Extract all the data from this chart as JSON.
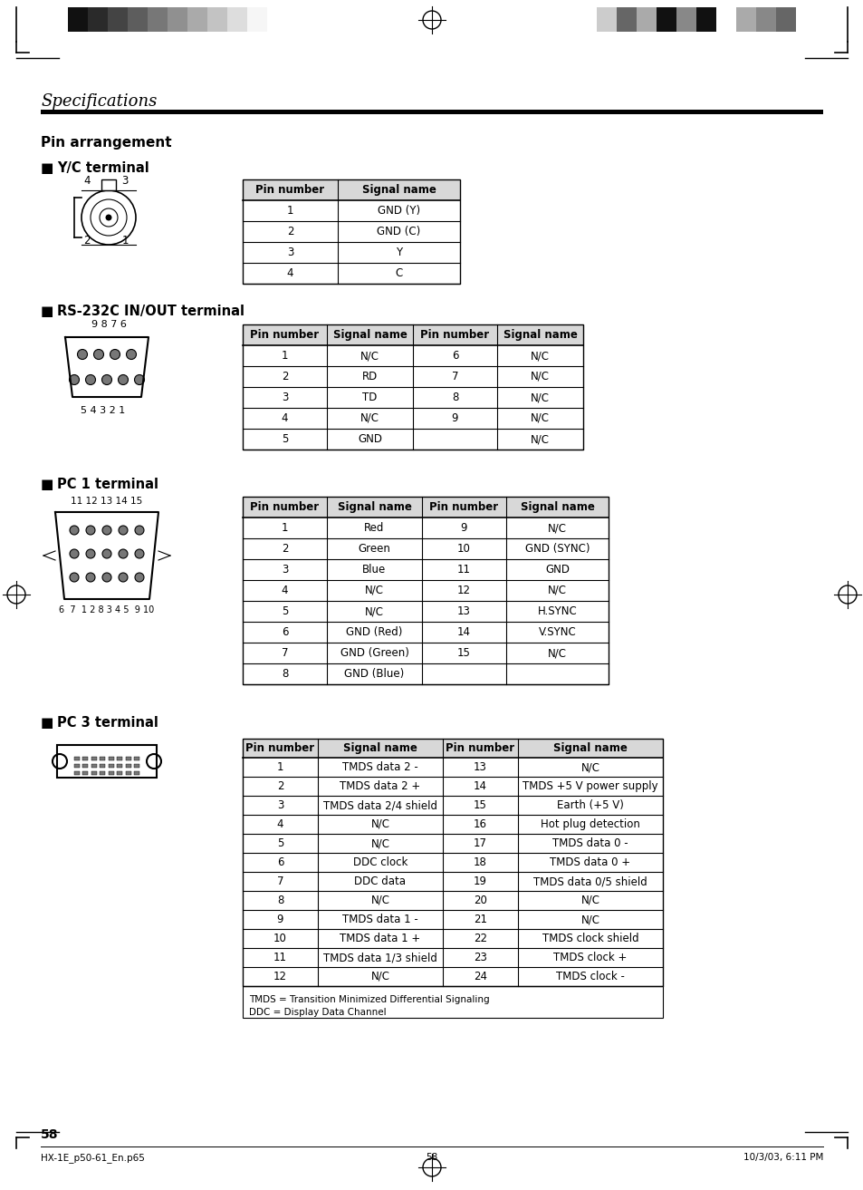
{
  "title": "Specifications",
  "page_number": "58",
  "footer_left": "HX-1E_p50-61_En.p65",
  "footer_center": "58",
  "footer_right": "10/3/03, 6:11 PM",
  "section_title": "Pin arrangement",
  "yc_title": "Y/C terminal",
  "yc_table_headers": [
    "Pin number",
    "Signal name"
  ],
  "yc_table_data": [
    [
      "1",
      "GND (Y)"
    ],
    [
      "2",
      "GND (C)"
    ],
    [
      "3",
      "Y"
    ],
    [
      "4",
      "C"
    ]
  ],
  "rs232_title": "RS-232C IN/OUT terminal",
  "rs232_table_headers": [
    "Pin number",
    "Signal name",
    "Pin number",
    "Signal name"
  ],
  "rs232_table_data": [
    [
      "1",
      "N/C",
      "6",
      "N/C"
    ],
    [
      "2",
      "RD",
      "7",
      "N/C"
    ],
    [
      "3",
      "TD",
      "8",
      "N/C"
    ],
    [
      "4",
      "N/C",
      "9",
      "N/C"
    ],
    [
      "5",
      "GND",
      "",
      "N/C"
    ]
  ],
  "pc1_title": "PC 1 terminal",
  "pc1_table_headers": [
    "Pin number",
    "Signal name",
    "Pin number",
    "Signal name"
  ],
  "pc1_table_data": [
    [
      "1",
      "Red",
      "9",
      "N/C"
    ],
    [
      "2",
      "Green",
      "10",
      "GND (SYNC)"
    ],
    [
      "3",
      "Blue",
      "11",
      "GND"
    ],
    [
      "4",
      "N/C",
      "12",
      "N/C"
    ],
    [
      "5",
      "N/C",
      "13",
      "H.SYNC"
    ],
    [
      "6",
      "GND (Red)",
      "14",
      "V.SYNC"
    ],
    [
      "7",
      "GND (Green)",
      "15",
      "N/C"
    ],
    [
      "8",
      "GND (Blue)",
      "",
      ""
    ]
  ],
  "pc3_title": "PC 3 terminal",
  "pc3_table_headers": [
    "Pin number",
    "Signal name",
    "Pin number",
    "Signal name"
  ],
  "pc3_table_data": [
    [
      "1",
      "TMDS data 2 -",
      "13",
      "N/C"
    ],
    [
      "2",
      "TMDS data 2 +",
      "14",
      "TMDS +5 V power supply"
    ],
    [
      "3",
      "TMDS data 2/4 shield",
      "15",
      "Earth (+5 V)"
    ],
    [
      "4",
      "N/C",
      "16",
      "Hot plug detection"
    ],
    [
      "5",
      "N/C",
      "17",
      "TMDS data 0 -"
    ],
    [
      "6",
      "DDC clock",
      "18",
      "TMDS data 0 +"
    ],
    [
      "7",
      "DDC data",
      "19",
      "TMDS data 0/5 shield"
    ],
    [
      "8",
      "N/C",
      "20",
      "N/C"
    ],
    [
      "9",
      "TMDS data 1 -",
      "21",
      "N/C"
    ],
    [
      "10",
      "TMDS data 1 +",
      "22",
      "TMDS clock shield"
    ],
    [
      "11",
      "TMDS data 1/3 shield",
      "23",
      "TMDS clock +"
    ],
    [
      "12",
      "N/C",
      "24",
      "TMDS clock -"
    ]
  ],
  "pc3_footnote1": "TMDS = Transition Minimized Differential Signaling",
  "pc3_footnote2": "DDC = Display Data Channel",
  "bar_colors_left": [
    "#111111",
    "#2a2a2a",
    "#444444",
    "#5d5d5d",
    "#777777",
    "#909090",
    "#aaaaaa",
    "#c3c3c3",
    "#dddddd",
    "#f6f6f6"
  ],
  "bar_colors_right": [
    "#cccccc",
    "#666666",
    "#aaaaaa",
    "#111111",
    "#888888",
    "#111111",
    "#ffffff",
    "#aaaaaa",
    "#888888",
    "#666666"
  ]
}
